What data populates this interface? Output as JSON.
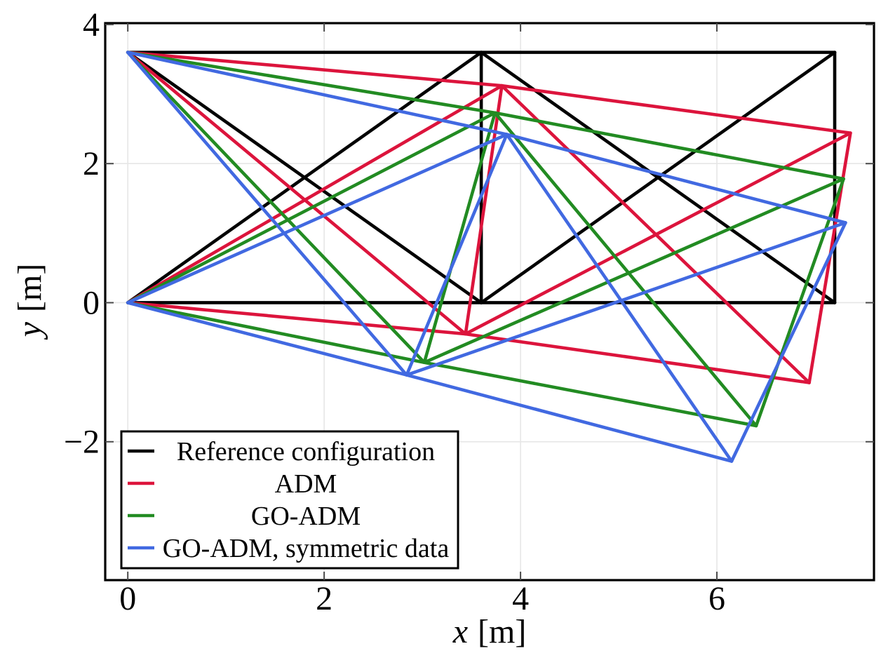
{
  "chart_data": {
    "type": "line",
    "title": "",
    "xlabel": "x [m]",
    "ylabel": "y [m]",
    "xlabel_parts": {
      "variable": "x",
      "unit": "[m]"
    },
    "ylabel_parts": {
      "variable": "y",
      "unit": "[m]"
    },
    "xlim": [
      -0.23,
      7.6
    ],
    "ylim": [
      -3.99,
      4.02
    ],
    "xticks": [
      0,
      2,
      4,
      6
    ],
    "yticks": [
      -2,
      0,
      2,
      4
    ],
    "grid": true,
    "legend": {
      "position": "lower left"
    },
    "members": [
      [
        "A",
        "C"
      ],
      [
        "C",
        "E"
      ],
      [
        "B",
        "D"
      ],
      [
        "D",
        "F"
      ],
      [
        "C",
        "D"
      ],
      [
        "E",
        "F"
      ],
      [
        "A",
        "D"
      ],
      [
        "B",
        "C"
      ],
      [
        "D",
        "E"
      ],
      [
        "C",
        "F"
      ]
    ],
    "series": [
      {
        "name": "Reference configuration",
        "color": "#000000",
        "nodes": {
          "A": [
            0,
            0
          ],
          "B": [
            0,
            3.6
          ],
          "C": [
            3.6,
            0
          ],
          "D": [
            3.6,
            3.6
          ],
          "E": [
            7.2,
            0
          ],
          "F": [
            7.2,
            3.6
          ]
        }
      },
      {
        "name": "ADM",
        "color": "#DC143C",
        "nodes": {
          "A": [
            0,
            0
          ],
          "B": [
            0,
            3.6
          ],
          "C": [
            3.44,
            -0.45
          ],
          "D": [
            3.81,
            3.12
          ],
          "E": [
            6.94,
            -1.15
          ],
          "F": [
            7.36,
            2.44
          ]
        }
      },
      {
        "name": "GO-ADM",
        "color": "#228B22",
        "nodes": {
          "A": [
            0,
            0
          ],
          "B": [
            0,
            3.6
          ],
          "C": [
            3.02,
            -0.86
          ],
          "D": [
            3.74,
            2.73
          ],
          "E": [
            6.4,
            -1.77
          ],
          "F": [
            7.29,
            1.78
          ]
        }
      },
      {
        "name": "GO-ADM, symmetric data",
        "color": "#4169E1",
        "nodes": {
          "A": [
            0,
            0
          ],
          "B": [
            0,
            3.6
          ],
          "C": [
            2.84,
            -1.04
          ],
          "D": [
            3.86,
            2.42
          ],
          "E": [
            6.15,
            -2.28
          ],
          "F": [
            7.31,
            1.15
          ]
        }
      }
    ]
  }
}
